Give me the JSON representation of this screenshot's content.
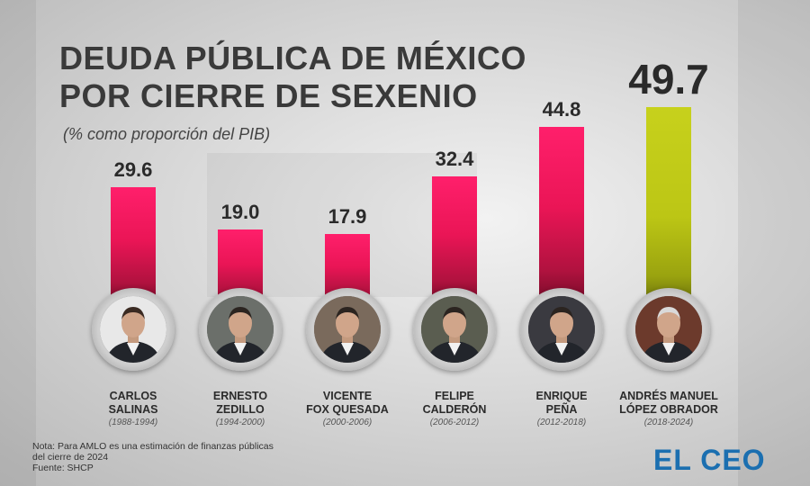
{
  "title_lines": [
    "DEUDA PÚBLICA DE MÉXICO",
    "POR CIERRE DE SEXENIO"
  ],
  "subtitle": "(% como proporción del PIB)",
  "colors": {
    "bar": "#ea1556",
    "highlight": "#bcc615",
    "title": "#3a3a3a",
    "brand": "#1b6fb0"
  },
  "chart_data": {
    "type": "bar",
    "title": "DEUDA PÚBLICA DE MÉXICO POR CIERRE DE SEXENIO",
    "subtitle": "(% como proporción del PIB)",
    "categories": [
      "CARLOS SALINAS",
      "ERNESTO ZEDILLO",
      "VICENTE FOX QUESADA",
      "FELIPE CALDERÓN",
      "ENRIQUE PEÑA",
      "ANDRÉS MANUEL LÓPEZ OBRADOR"
    ],
    "values": [
      29.6,
      19.0,
      17.9,
      32.4,
      44.8,
      49.7
    ],
    "value_labels": [
      "29.6",
      "19.0",
      "17.9",
      "32.4",
      "44.8",
      "49.7"
    ],
    "highlight_index": 5,
    "xlabel": "",
    "ylabel": "",
    "grid": false,
    "legend": "none",
    "presidents": [
      {
        "name_lines": [
          "CARLOS",
          "SALINAS"
        ],
        "years": "(1988-1994)"
      },
      {
        "name_lines": [
          "ERNESTO",
          "ZEDILLO"
        ],
        "years": "(1994-2000)"
      },
      {
        "name_lines": [
          "VICENTE",
          "FOX QUESADA"
        ],
        "years": "(2000-2006)"
      },
      {
        "name_lines": [
          "FELIPE",
          "CALDERÓN"
        ],
        "years": "(2006-2012)"
      },
      {
        "name_lines": [
          "ENRIQUE",
          "PEÑA"
        ],
        "years": "(2012-2018)"
      },
      {
        "name_lines": [
          "ANDRÉS MANUEL",
          "LÓPEZ OBRADOR"
        ],
        "years": "(2018-2024)"
      }
    ]
  },
  "note_lines": [
    "Nota: Para AMLO es una estimación de finanzas públicas",
    "del cierre de 2024",
    "Fuente: SHCP"
  ],
  "brand": "EL CEO"
}
